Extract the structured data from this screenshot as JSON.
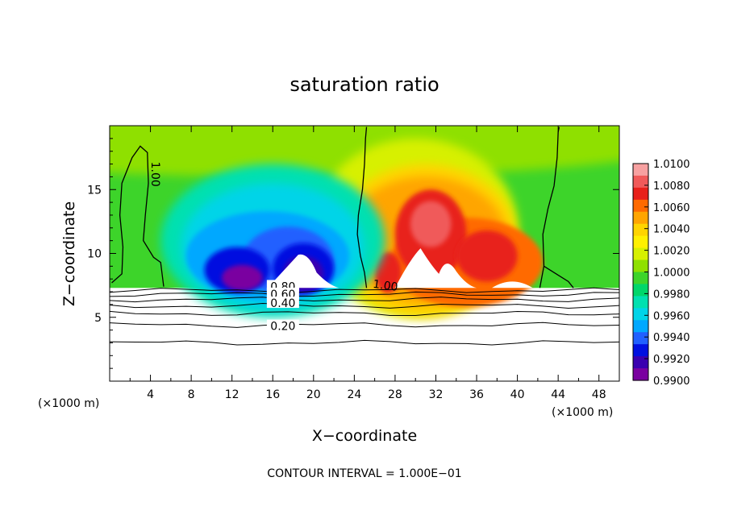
{
  "chart_data": {
    "type": "heatmap",
    "title": "saturation ratio",
    "xlabel": "X−coordinate",
    "ylabel": "Z−coordinate",
    "x_units": "(×1000 m)",
    "z_units": "(×1000 m)",
    "xlim": [
      0,
      50
    ],
    "ylim": [
      0,
      20
    ],
    "x_ticks": [
      4,
      8,
      12,
      16,
      20,
      24,
      28,
      32,
      36,
      40,
      44,
      48
    ],
    "y_ticks": [
      5,
      10,
      15
    ],
    "colorbar": {
      "min": 0.99,
      "max": 1.01,
      "labels": [
        "1.0100",
        "1.0080",
        "1.0060",
        "1.0040",
        "1.0020",
        "1.0000",
        "0.9980",
        "0.9960",
        "0.9940",
        "0.9920",
        "0.9900"
      ],
      "colors": [
        "#f7a1a1",
        "#f05a5a",
        "#e8201a",
        "#ff6a00",
        "#ffa500",
        "#ffd400",
        "#fff000",
        "#d7f000",
        "#8fe000",
        "#3dd42a",
        "#00d66a",
        "#00e0b0",
        "#00d4e8",
        "#00a8ff",
        "#2060ff",
        "#0010e0",
        "#3a00b0",
        "#7a00a0"
      ]
    },
    "contour_labels": [
      "1.00",
      "1.00",
      "0.80",
      "0.60",
      "0.40",
      "0.20"
    ],
    "contour_interval_note": "CONTOUR INTERVAL = 1.000E−01",
    "terrain_top_z": 7.3,
    "features": [
      {
        "name": "dry region",
        "x_range": [
          6,
          24
        ],
        "z_range": [
          7.3,
          14
        ],
        "min_value": 0.99
      },
      {
        "name": "supersaturated region",
        "x_range": [
          25,
          42
        ],
        "z_range": [
          7.3,
          16
        ],
        "max_value": 1.0085
      },
      {
        "name": "background",
        "value": 1.0
      }
    ],
    "below_terrain_contours_z": [
      3.0,
      4.4,
      5.3,
      5.9,
      6.4,
      6.8,
      7.1
    ]
  }
}
